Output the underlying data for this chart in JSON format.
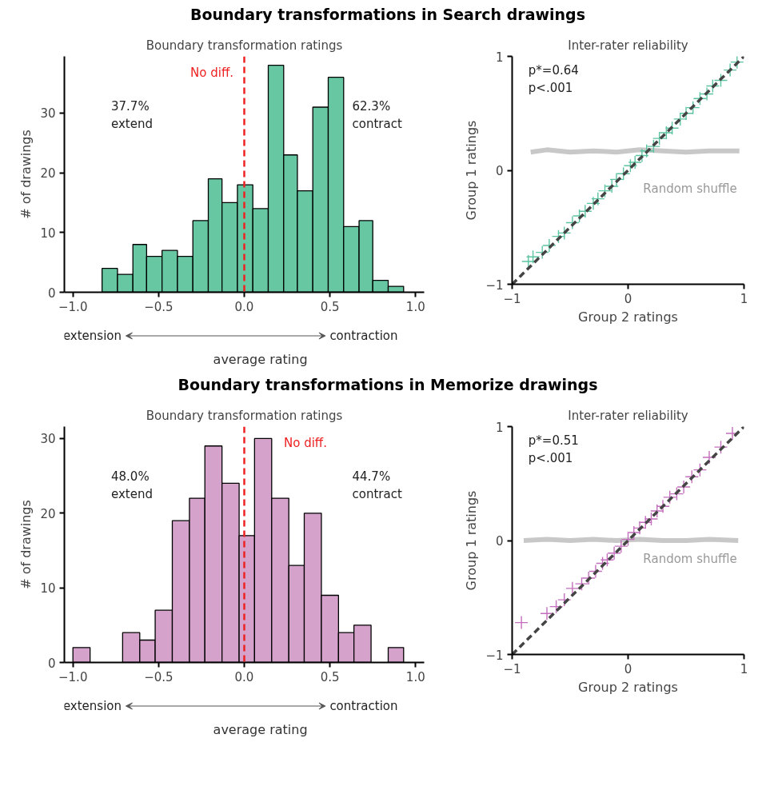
{
  "chart_data": [
    {
      "type": "histogram",
      "title": "Boundary transformations in Search drawings",
      "subtitle": "Boundary transformation ratings",
      "xlabel": "average rating",
      "ylabel": "# of drawings",
      "color": "#66c7a2",
      "bins": [
        -0.83,
        -0.74,
        -0.65,
        -0.57,
        -0.48,
        -0.39,
        -0.3,
        -0.21,
        -0.13,
        -0.04,
        0.05,
        0.14,
        0.23,
        0.31,
        0.4,
        0.49,
        0.58,
        0.67,
        0.75,
        0.84,
        0.93
      ],
      "values": [
        4,
        3,
        8,
        6,
        7,
        6,
        12,
        19,
        15,
        18,
        14,
        38,
        23,
        17,
        31,
        36,
        11,
        12,
        2,
        1
      ],
      "xlim": [
        -1.05,
        1.05
      ],
      "ylim": [
        0,
        39.5
      ],
      "xticks": [
        {
          "value": -1,
          "label": "−1.0"
        },
        {
          "value": -0.5,
          "label": "−0.5"
        },
        {
          "value": 0,
          "label": "0.0"
        },
        {
          "value": 0.5,
          "label": "0.5"
        },
        {
          "value": 1,
          "label": "1.0"
        }
      ],
      "yticks": [
        0,
        10,
        20,
        30
      ],
      "ref_lines": [
        {
          "axis": "x",
          "value": 0,
          "label": "No diff.",
          "color": "#ee2222",
          "line_style": "dashed"
        }
      ],
      "annotations": [
        "37.7%\nextend",
        "62.3%\ncontract",
        "extension",
        "contraction"
      ]
    },
    {
      "type": "scatter",
      "title": "Inter-rater reliability",
      "xlabel": "Group 2 ratings",
      "ylabel": "Group 1 ratings",
      "xlim": [
        -1,
        1
      ],
      "ylim": [
        -1,
        1
      ],
      "xticks": [
        {
          "value": -1,
          "label": "−1"
        },
        0,
        1
      ],
      "yticks": [
        {
          "value": -1,
          "label": "−1"
        },
        0,
        1
      ],
      "annotations": [
        "p*=0.64\np<.001"
      ],
      "series": [
        {
          "name": "Random shuffle",
          "type": "line",
          "color": "#c8c8c8",
          "x": [
            -0.84,
            -0.7,
            -0.5,
            -0.3,
            -0.1,
            0.1,
            0.3,
            0.5,
            0.7,
            0.96
          ],
          "values": [
            0.16,
            0.18,
            0.16,
            0.17,
            0.16,
            0.18,
            0.17,
            0.16,
            0.17,
            0.17
          ]
        },
        {
          "type": "scatter",
          "marker": "cross",
          "color": "#5cc4a0",
          "x": [
            -0.86,
            -0.82,
            -0.74,
            -0.68,
            -0.6,
            -0.55,
            -0.48,
            -0.42,
            -0.37,
            -0.3,
            -0.26,
            -0.2,
            -0.14,
            -0.1,
            -0.04,
            0.02,
            0.06,
            0.12,
            0.16,
            0.22,
            0.27,
            0.33,
            0.38,
            0.45,
            0.5,
            0.56,
            0.62,
            0.68,
            0.73,
            0.8,
            0.88,
            0.94
          ],
          "values": [
            -0.8,
            -0.76,
            -0.72,
            -0.66,
            -0.58,
            -0.55,
            -0.46,
            -0.4,
            -0.36,
            -0.29,
            -0.25,
            -0.18,
            -0.14,
            -0.08,
            -0.03,
            0.04,
            0.07,
            0.13,
            0.17,
            0.21,
            0.28,
            0.33,
            0.37,
            0.45,
            0.5,
            0.55,
            0.63,
            0.67,
            0.74,
            0.79,
            0.88,
            0.95
          ]
        },
        {
          "type": "line",
          "line_style": "dashed",
          "color": "#444444",
          "x": [
            -1,
            1
          ],
          "values": [
            -1,
            1
          ]
        }
      ]
    },
    {
      "type": "histogram",
      "title": "Boundary transformations in Memorize drawings",
      "subtitle": "Boundary transformation ratings",
      "xlabel": "average rating",
      "ylabel": "# of drawings",
      "color": "#d4a2cb",
      "bins": [
        -1.0,
        -0.9,
        -0.71,
        -0.61,
        -0.52,
        -0.42,
        -0.32,
        -0.23,
        -0.13,
        -0.03,
        0.06,
        0.16,
        0.26,
        0.35,
        0.45,
        0.55,
        0.64,
        0.74,
        0.84,
        0.93
      ],
      "values": [
        2,
        0,
        4,
        3,
        7,
        19,
        22,
        29,
        24,
        17,
        30,
        22,
        13,
        20,
        9,
        4,
        5,
        0,
        2
      ],
      "xlim": [
        -1.05,
        1.05
      ],
      "ylim": [
        0,
        31.6
      ],
      "xticks": [
        {
          "value": -1,
          "label": "−1.0"
        },
        {
          "value": -0.5,
          "label": "−0.5"
        },
        {
          "value": 0,
          "label": "0.0"
        },
        {
          "value": 0.5,
          "label": "0.5"
        },
        {
          "value": 1,
          "label": "1.0"
        }
      ],
      "yticks": [
        0,
        10,
        20,
        30
      ],
      "ref_lines": [
        {
          "axis": "x",
          "value": 0,
          "label": "No diff.",
          "color": "#ee2222",
          "line_style": "dashed"
        }
      ],
      "annotations": [
        "48.0%\nextend",
        "44.7%\ncontract",
        "extension",
        "contraction"
      ]
    },
    {
      "type": "scatter",
      "title": "Inter-rater reliability",
      "xlabel": "Group 2 ratings",
      "ylabel": "Group 1 ratings",
      "xlim": [
        -1,
        1
      ],
      "ylim": [
        -1,
        1
      ],
      "xticks": [
        {
          "value": -1,
          "label": "−1"
        },
        0,
        1
      ],
      "yticks": [
        {
          "value": -1,
          "label": "−1"
        },
        0,
        1
      ],
      "annotations": [
        "p*=0.51\np<.001"
      ],
      "series": [
        {
          "name": "Random shuffle",
          "type": "line",
          "color": "#c8c8c8",
          "x": [
            -0.9,
            -0.7,
            -0.5,
            -0.3,
            -0.1,
            0.1,
            0.3,
            0.5,
            0.7,
            0.95
          ],
          "values": [
            0.0,
            0.01,
            0.0,
            0.01,
            0.0,
            0.01,
            0.0,
            0.0,
            0.01,
            0.0
          ]
        },
        {
          "type": "scatter",
          "marker": "cross",
          "color": "#c46fbd",
          "x": [
            -0.92,
            -0.7,
            -0.62,
            -0.55,
            -0.48,
            -0.4,
            -0.34,
            -0.28,
            -0.22,
            -0.18,
            -0.12,
            -0.06,
            0.0,
            0.05,
            0.1,
            0.15,
            0.2,
            0.25,
            0.3,
            0.36,
            0.42,
            0.48,
            0.55,
            0.62,
            0.7,
            0.8,
            0.9
          ],
          "values": [
            -0.72,
            -0.64,
            -0.58,
            -0.52,
            -0.42,
            -0.38,
            -0.33,
            -0.27,
            -0.2,
            -0.17,
            -0.11,
            -0.05,
            0.01,
            0.07,
            0.11,
            0.16,
            0.19,
            0.26,
            0.3,
            0.38,
            0.41,
            0.47,
            0.56,
            0.62,
            0.73,
            0.82,
            0.94
          ]
        },
        {
          "type": "line",
          "line_style": "dashed",
          "color": "#444444",
          "x": [
            -1,
            1
          ],
          "values": [
            -1,
            1
          ]
        }
      ]
    }
  ]
}
